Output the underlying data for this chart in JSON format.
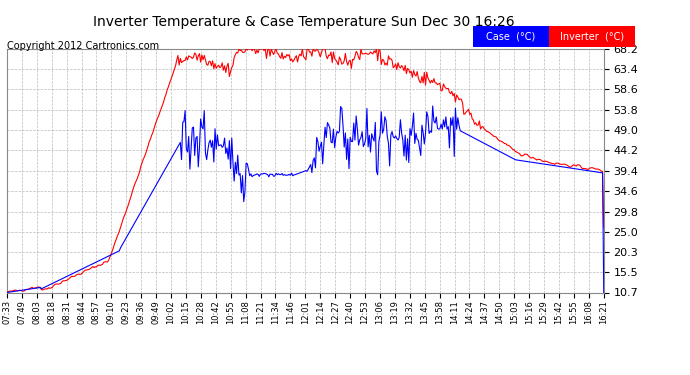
{
  "title": "Inverter Temperature & Case Temperature Sun Dec 30 16:26",
  "copyright": "Copyright 2012 Cartronics.com",
  "background_color": "#ffffff",
  "plot_bg_color": "#ffffff",
  "grid_color": "#aaaaaa",
  "ylim": [
    10.7,
    68.2
  ],
  "yticks": [
    10.7,
    15.5,
    20.3,
    25.0,
    29.8,
    34.6,
    39.4,
    44.2,
    49.0,
    53.8,
    58.6,
    63.4,
    68.2
  ],
  "case_color": "#0000ff",
  "inverter_color": "#ff0000",
  "legend_case_bg": "#0000ff",
  "legend_inverter_bg": "#ff0000",
  "legend_case_label": "Case  (°C)",
  "legend_inverter_label": "Inverter  (°C)",
  "xtick_labels": [
    "07:33",
    "07:49",
    "08:03",
    "08:18",
    "08:31",
    "08:44",
    "08:57",
    "09:10",
    "09:23",
    "09:36",
    "09:49",
    "10:02",
    "10:15",
    "10:28",
    "10:42",
    "10:55",
    "11:08",
    "11:21",
    "11:34",
    "11:46",
    "12:01",
    "12:14",
    "12:27",
    "12:40",
    "12:53",
    "13:06",
    "13:19",
    "13:32",
    "13:45",
    "13:58",
    "14:11",
    "14:24",
    "14:37",
    "14:50",
    "15:03",
    "15:16",
    "15:29",
    "15:42",
    "15:55",
    "16:08",
    "16:21"
  ]
}
